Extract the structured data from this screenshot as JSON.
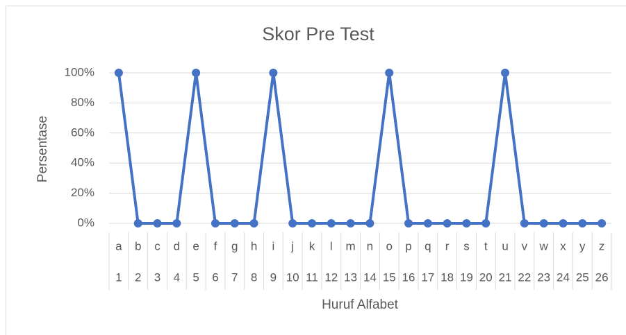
{
  "chart_data": {
    "type": "line",
    "title": "Skor Pre Test",
    "x_label": "Huruf Alfabet",
    "y_label": "Persentase",
    "categories": [
      "a",
      "b",
      "c",
      "d",
      "e",
      "f",
      "g",
      "h",
      "i",
      "j",
      "k",
      "l",
      "m",
      "n",
      "o",
      "p",
      "q",
      "r",
      "s",
      "t",
      "u",
      "v",
      "w",
      "x",
      "y",
      "z"
    ],
    "category_numbers": [
      1,
      2,
      3,
      4,
      5,
      6,
      7,
      8,
      9,
      10,
      11,
      12,
      13,
      14,
      15,
      16,
      17,
      18,
      19,
      20,
      21,
      22,
      23,
      24,
      25,
      26
    ],
    "series": [
      {
        "color": "#4472c4",
        "values": [
          100,
          0,
          0,
          0,
          100,
          0,
          0,
          0,
          100,
          0,
          0,
          0,
          0,
          0,
          100,
          0,
          0,
          0,
          0,
          0,
          100,
          0,
          0,
          0,
          0,
          0
        ]
      }
    ],
    "ylim": [
      0,
      100
    ],
    "yticks": [
      {
        "value": 0,
        "label": "0%"
      },
      {
        "value": 20,
        "label": "20%"
      },
      {
        "value": 40,
        "label": "40%"
      },
      {
        "value": 60,
        "label": "60%"
      },
      {
        "value": 80,
        "label": "80%"
      },
      {
        "value": 100,
        "label": "100%"
      }
    ],
    "grid": true
  }
}
